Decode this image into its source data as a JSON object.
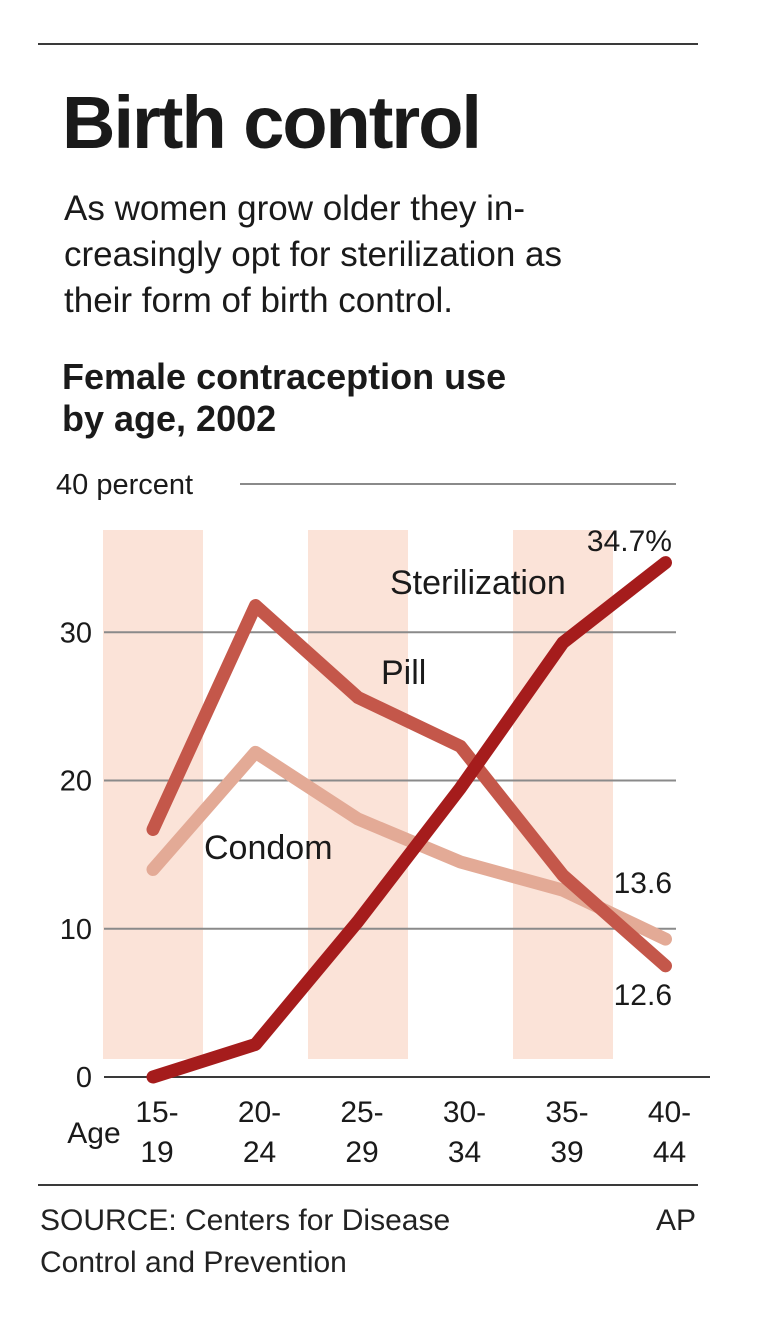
{
  "header": {
    "title": "Birth control",
    "subtitle_lines": [
      "As women grow older they in-",
      "creasingly opt for sterilization as",
      "their form of birth control."
    ]
  },
  "chart_title": {
    "line1": "Female contraception use",
    "line2": "by age, 2002"
  },
  "chart_data": {
    "type": "line",
    "title": "Female contraception use by age, 2002",
    "xlabel": "Age",
    "ylabel": "",
    "categories": [
      "15-19",
      "20-24",
      "25-29",
      "30-34",
      "35-39",
      "40-44"
    ],
    "category_lines": [
      [
        "15-",
        "19"
      ],
      [
        "20-",
        "24"
      ],
      [
        "25-",
        "29"
      ],
      [
        "30-",
        "34"
      ],
      [
        "35-",
        "39"
      ],
      [
        "40-",
        "44"
      ]
    ],
    "ylim": [
      0,
      40
    ],
    "yticks": [
      0,
      10,
      20,
      30,
      40
    ],
    "ytick_labels": [
      "0",
      "10",
      "20",
      "30",
      "40 percent"
    ],
    "grid": true,
    "shaded_categories": [
      "15-19",
      "25-29",
      "35-39"
    ],
    "series": [
      {
        "name": "Sterilization",
        "values": [
          0,
          2.2,
          10.5,
          19.5,
          29.3,
          34.7
        ],
        "color": "#a51c1c",
        "end_label": "34.7%"
      },
      {
        "name": "Pill",
        "values": [
          16.7,
          31.8,
          25.6,
          22.3,
          13.6,
          7.5
        ],
        "color": "#c4574a",
        "end_label": ""
      },
      {
        "name": "Condom",
        "values": [
          14.0,
          21.9,
          17.4,
          14.5,
          12.6,
          9.3
        ],
        "color": "#e3aa96",
        "end_label": ""
      }
    ],
    "annotations": [
      "13.6",
      "12.6"
    ]
  },
  "footer": {
    "source_lines": [
      "SOURCE: Centers for Disease",
      "Control and Prevention"
    ],
    "credit": "AP"
  },
  "colors": {
    "band": "#fbe3d8",
    "grid": "#8a8a8a",
    "axis": "#3a3a3a",
    "text": "#1a1a1a"
  }
}
